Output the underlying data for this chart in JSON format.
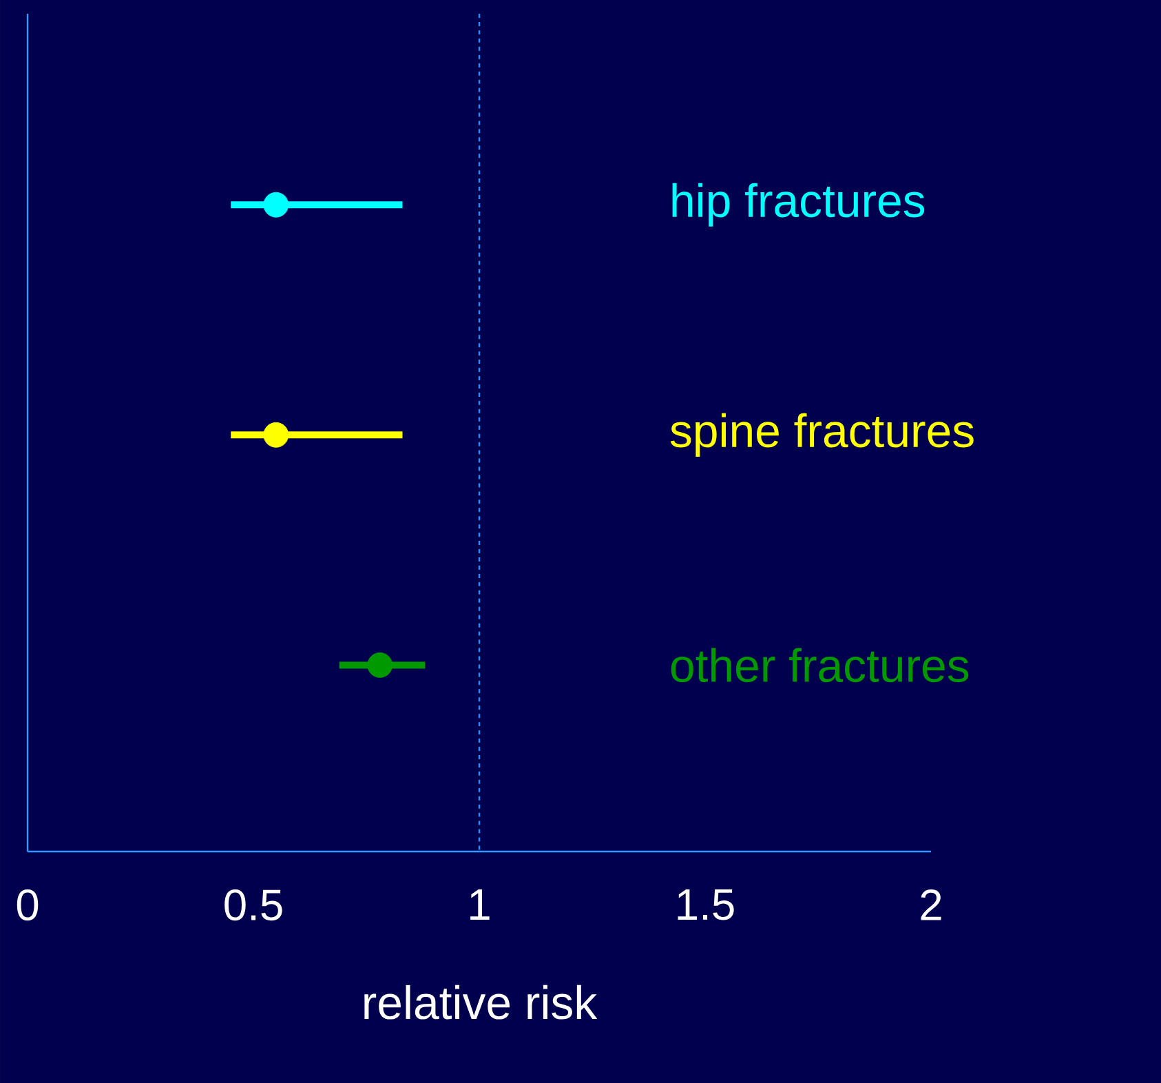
{
  "chart_data": {
    "type": "scatter",
    "orientation": "horizontal",
    "xlabel": "relative risk",
    "categories": [
      "hip fractures",
      "spine fractures",
      "other fractures"
    ],
    "values": [
      0.55,
      0.55,
      0.78
    ],
    "errors": [
      [
        0.45,
        0.83
      ],
      [
        0.45,
        0.83
      ],
      [
        0.69,
        0.88
      ]
    ],
    "colors": [
      "#00ffff",
      "#ffff00",
      "#009900"
    ],
    "xlim": [
      0,
      2
    ],
    "xticks": [
      0,
      0.5,
      1,
      1.5,
      2
    ],
    "ref_lines": [
      {
        "axis": "x",
        "value": 1,
        "color": "#1e90ff",
        "line_style": "dashed"
      }
    ],
    "marker": "circle",
    "legend": false,
    "grid": false
  }
}
